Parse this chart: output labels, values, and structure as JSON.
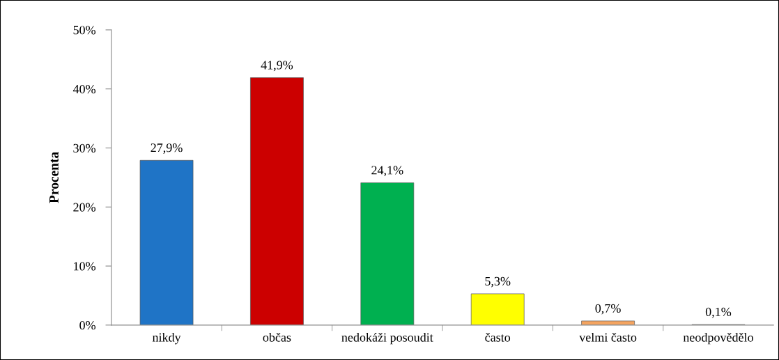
{
  "chart_data": {
    "type": "bar",
    "ylabel": "Procenta",
    "categories": [
      "nikdy",
      "občas",
      "nedokáži posoudit",
      "často",
      "velmi často",
      "neodpovědělo"
    ],
    "values": [
      27.9,
      41.9,
      24.1,
      5.3,
      0.7,
      0.1
    ],
    "colors": [
      "#1f74c6",
      "#cc0000",
      "#00b050",
      "#ffff00",
      "#f4a460",
      "#c8c8b4"
    ],
    "value_labels": [
      "27,9%",
      "41,9%",
      "24,1%",
      "5,3%",
      "0,7%",
      "0,1%"
    ],
    "ylim": [
      0,
      50
    ],
    "yticks": [
      {
        "value": 0,
        "label": "0%"
      },
      {
        "value": 10,
        "label": "10%"
      },
      {
        "value": 20,
        "label": "20%"
      },
      {
        "value": 30,
        "label": "30%"
      },
      {
        "value": 40,
        "label": "40%"
      },
      {
        "value": 50,
        "label": "50%"
      }
    ],
    "grid": false,
    "legend": false
  }
}
